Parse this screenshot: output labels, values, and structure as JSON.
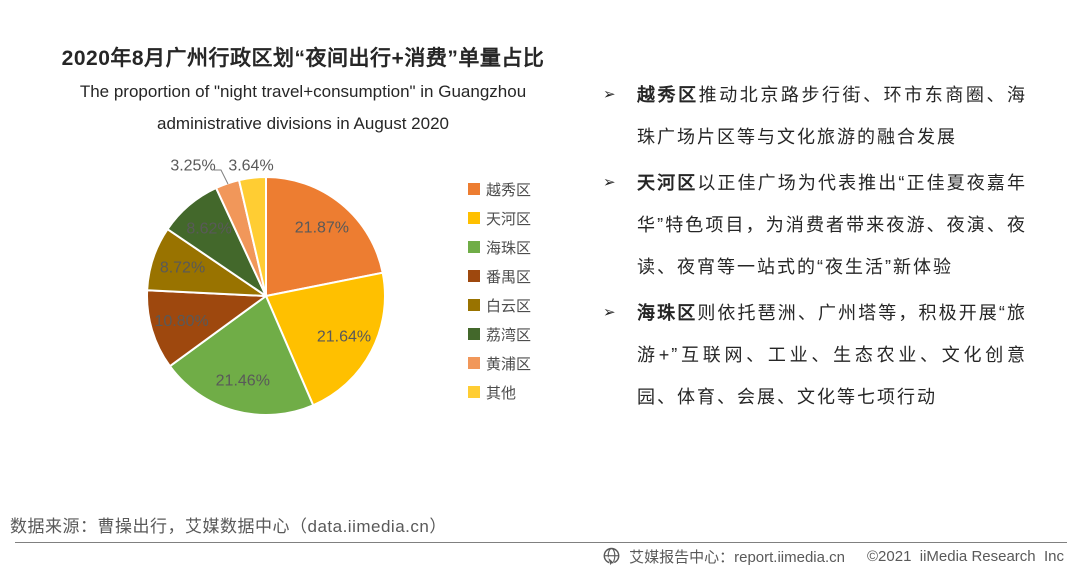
{
  "header": {
    "title": "2020年8月广州行政区划“夜间出行+消费”单量占比",
    "subtitle_line1": "The proportion of \"night travel+consumption\" in Guangzhou",
    "subtitle_line2": "administrative divisions in August 2020"
  },
  "chart_data": {
    "type": "pie",
    "title": "2020年8月广州行政区划“夜间出行+消费”单量占比",
    "subtitle": "The proportion of \"night travel+consumption\" in Guangzhou administrative divisions in August 2020",
    "categories": [
      "越秀区",
      "天河区",
      "海珠区",
      "番禺区",
      "白云区",
      "荔湾区",
      "黄浦区",
      "其他"
    ],
    "values": [
      21.87,
      21.64,
      21.46,
      10.8,
      8.72,
      8.62,
      3.25,
      3.64
    ],
    "value_labels": [
      "21.87%",
      "21.64%",
      "21.46%",
      "10.80%",
      "8.72%",
      "8.62%",
      "3.25%",
      "3.64%"
    ],
    "colors": [
      "#ED7D31",
      "#FFC000",
      "#70AD47",
      "#9E480E",
      "#997300",
      "#43682B",
      "#F1975A",
      "#FFCD33"
    ],
    "unit": "%",
    "start_angle_deg": 0,
    "direction": "clockwise",
    "legend_position": "right",
    "label_placement": "inside slices; slices under 5% labeled outside top, 3.25% with leader line"
  },
  "insights": {
    "bullet_glyph": "➢",
    "items": [
      {
        "lead": "越秀区",
        "rest": "推动北京路步行街、环市东商圈、海珠广场片区等与文化旅游的融合发展"
      },
      {
        "lead": "天河区",
        "rest": "以正佳广场为代表推出“正佳夏夜嘉年华”特色项目，为消费者带来夜游、夜演、夜读、夜宵等一站式的“夜生活”新体验"
      },
      {
        "lead": "海珠区",
        "rest": "则依托琶洲、广州塔等，积极开展“旅游+”互联网、工业、生态农业、文化创意园、体育、会展、文化等七项行动"
      }
    ]
  },
  "source_note": "数据来源：曹操出行，艾媒数据中心（data.iimedia.cn）",
  "footer": {
    "site_label": "艾媒报告中心：report.iimedia.cn",
    "copyright": "©2021  iiMedia Research  Inc",
    "globe_icon": "globe-with-cursor"
  }
}
